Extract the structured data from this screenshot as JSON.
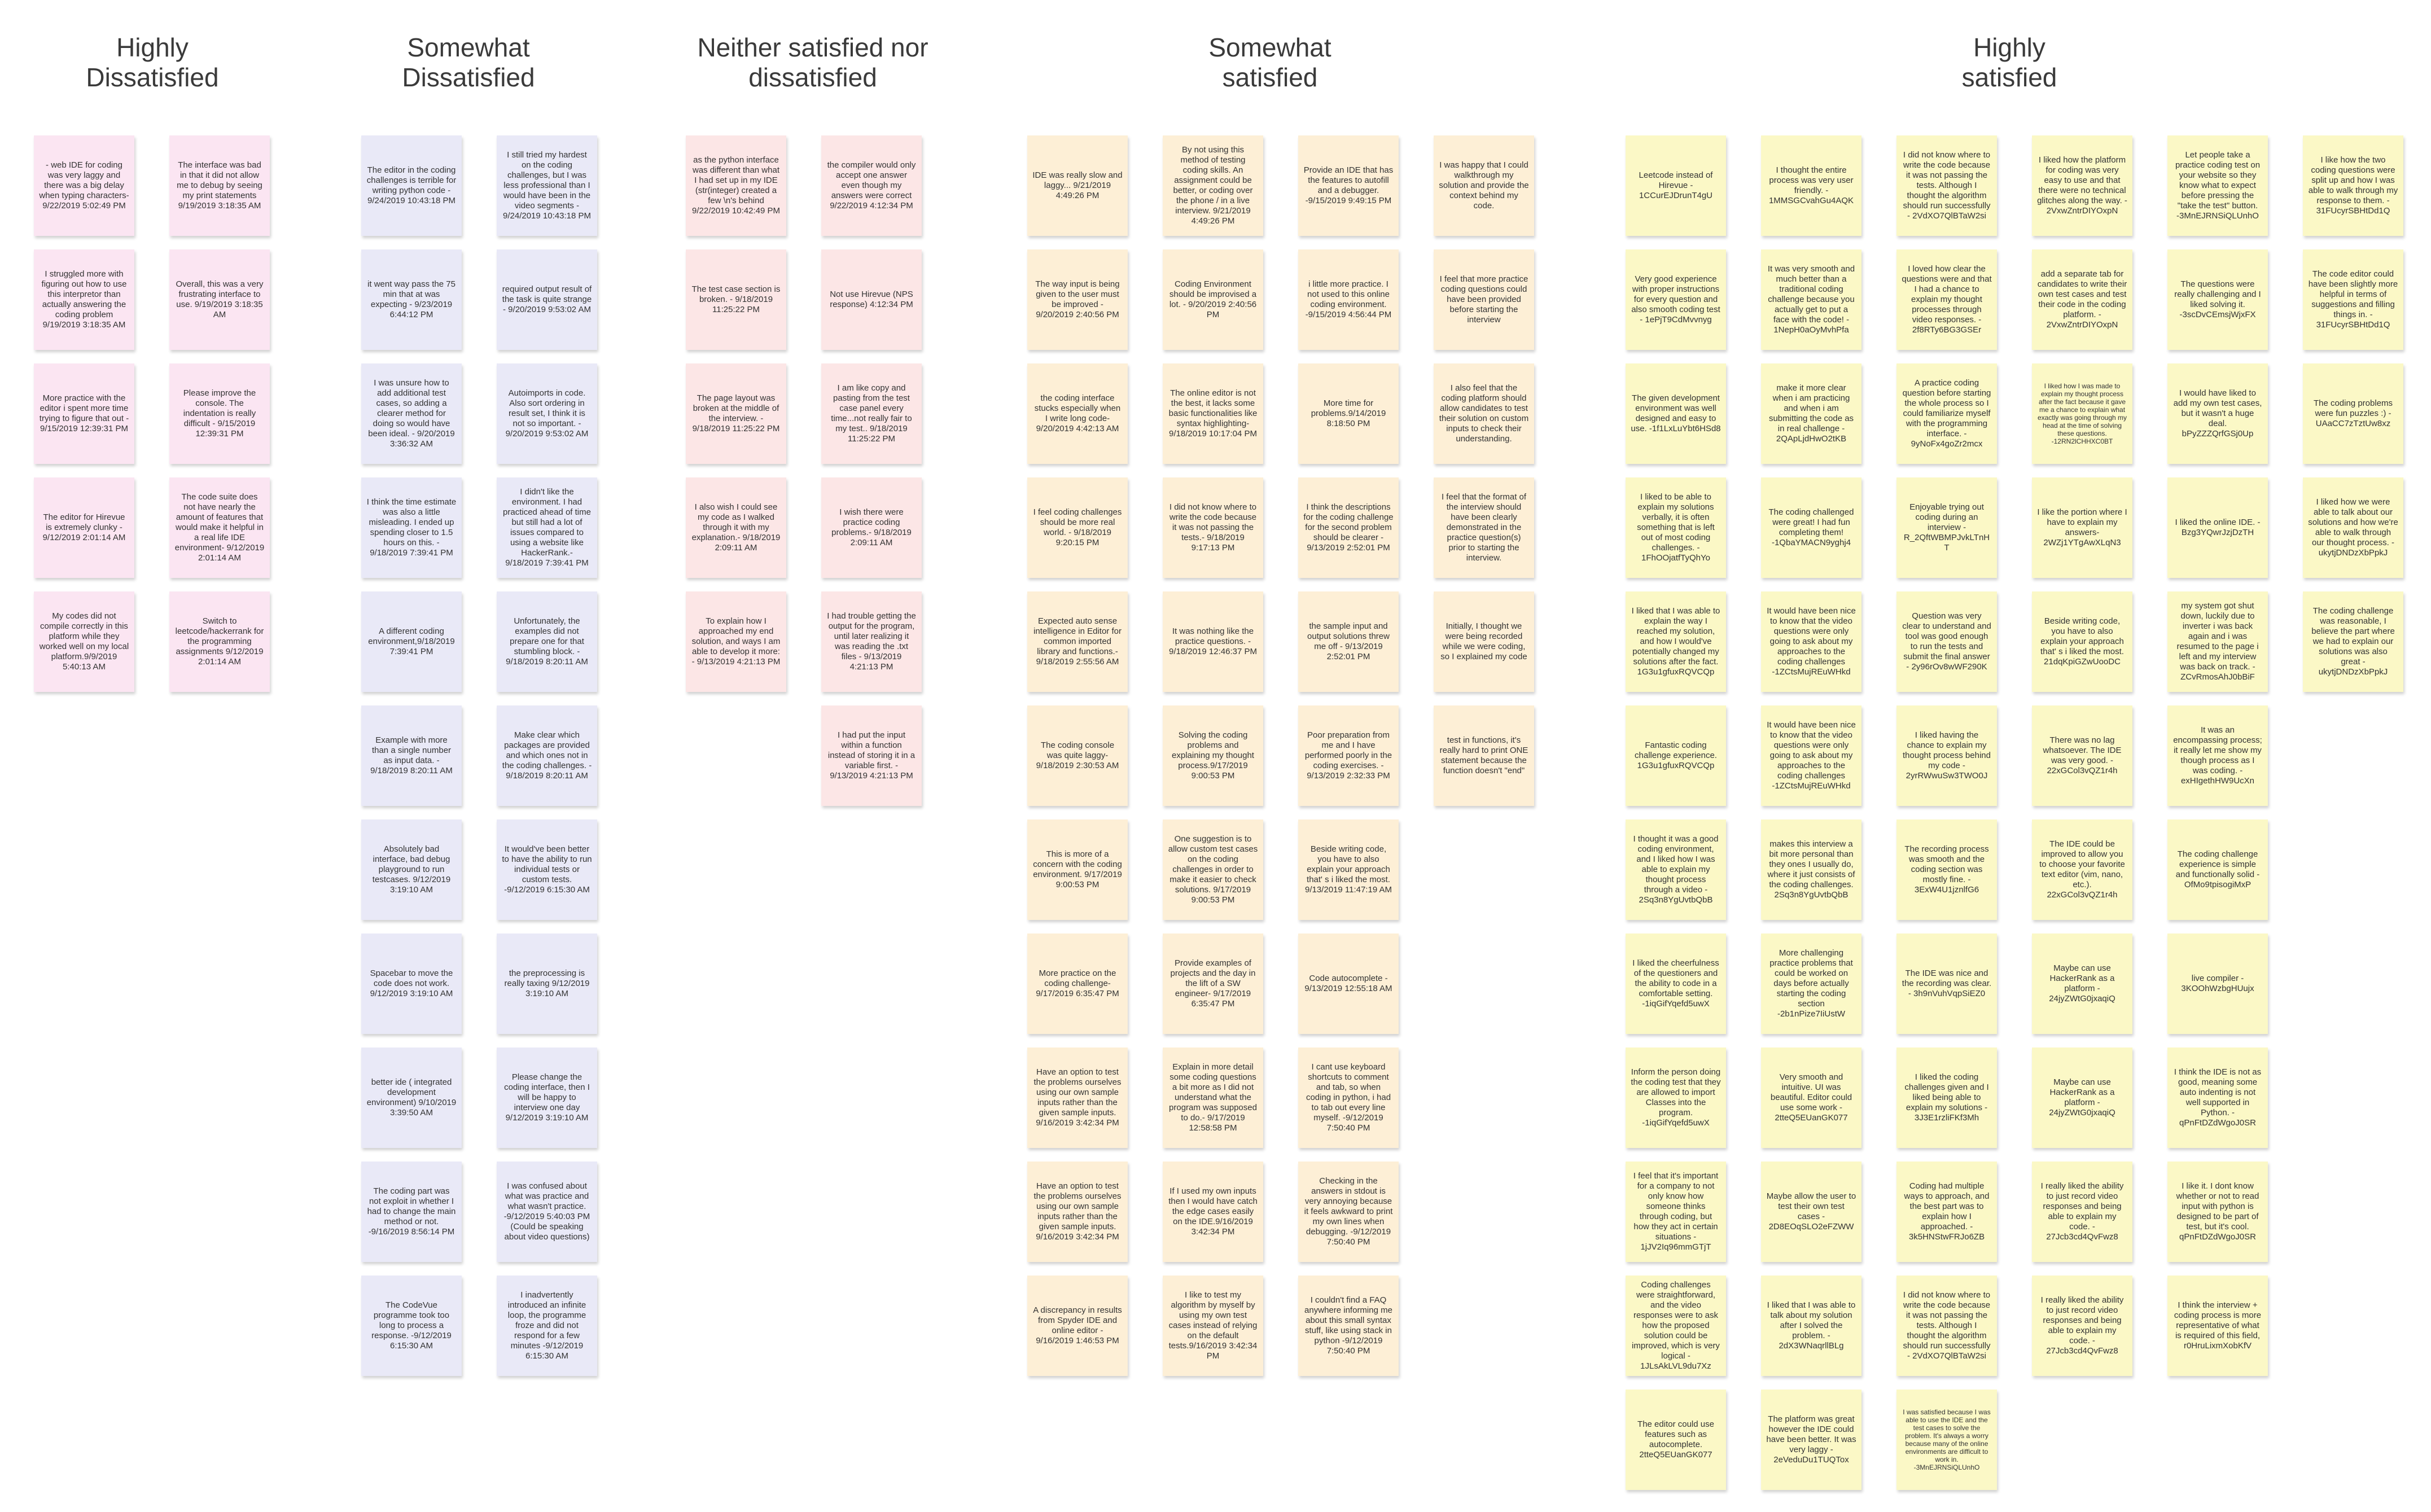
{
  "columns": [
    {
      "title": "Highly\nDissatisfied",
      "color": "#fbe5f2",
      "sub_columns": [
        [
          "- web IDE for coding was very laggy and there was a big delay when typing characters- 9/22/2019 5:02:49 PM",
          "I struggled more with figuring out how to use this interpretor than actually answering the coding problem 9/19/2019 3:18:35 AM",
          "More practice with the editor i spent more time trying to figure that out - 9/15/2019 12:39:31 PM",
          "The editor for Hirevue is extremely clunky - 9/12/2019 2:01:14 AM",
          "My codes did not compile correctly in this platform while they worked well on my local platform.9/9/2019 5:40:13 AM"
        ],
        [
          "The interface was bad in that it did not allow me to debug by seeing my print statements 9/19/2019 3:18:35 AM",
          "Overall, this was a very frustrating interface to use. 9/19/2019 3:18:35 AM",
          "Please improve the console. The indentation is really difficult - 9/15/2019 12:39:31 PM",
          "The code suite does not have nearly the amount of features that would make it helpful in a real life IDE environment- 9/12/2019 2:01:14 AM",
          "Switch to leetcode/hackerrank for the programming assignments 9/12/2019 2:01:14 AM"
        ]
      ]
    },
    {
      "title": "Somewhat\nDissatisfied",
      "color": "#e9e9f7",
      "sub_columns": [
        [
          "The editor in the coding challenges is terrible for writing python code - 9/24/2019 10:43:18 PM",
          "it went way pass the 75 min that at was expecting - 9/23/2019 6:44:12 PM",
          "I was unsure how to add additional test cases, so adding a clearer method for doing so would have been ideal. - 9/20/2019 3:36:32 AM",
          "I think the time estimate was also a little misleading. I ended up spending closer to 1.5 hours on this. - 9/18/2019 7:39:41 PM",
          "A different coding environment,9/18/2019 7:39:41 PM",
          "Example with more than a single number as input data. - 9/18/2019 8:20:11 AM",
          "Absolutely bad interface, bad debug playground to run testcases. 9/12/2019 3:19:10 AM",
          "Spacebar to move the code does not work. 9/12/2019 3:19:10 AM",
          "better ide ( integrated development environment) 9/10/2019 3:39:50 AM",
          "The coding part was not exploit in whether I had to change the main method or not. -9/16/2019 8:56:14 PM",
          "The CodeVue programme took too long to process a response. -9/12/2019 6:15:30 AM"
        ],
        [
          "I still tried my hardest on the coding challenges, but I was less professional than I would have been in the video segments - 9/24/2019 10:43:18 PM",
          "required output result of the task is quite strange - 9/20/2019 9:53:02 AM",
          "Autoimports in code.\n\nAlso sort ordering in result set, I think it is not so important. - 9/20/2019 9:53:02 AM",
          "I didn't like the environment. I had practiced ahead of time but still had a lot of issues compared to using a website like HackerRank.- 9/18/2019 7:39:41 PM",
          "Unfortunately, the examples did not prepare one for that stumbling block. - 9/18/2019 8:20:11 AM",
          "Make clear which packages are provided and which ones not in the coding challenges. - 9/18/2019 8:20:11 AM",
          "It would've been better to have the ability to run individual tests or custom tests. -9/12/2019 6:15:30 AM",
          "the preprocessing is really taxing 9/12/2019 3:19:10 AM",
          "Please change the coding interface, then I will be happy to interview one day 9/12/2019 3:19:10 AM",
          "I was confused about what was practice and what wasn't practice. -9/12/2019 5:40:03 PM (Could be speaking about video questions)",
          "I inadvertently introduced an infinite loop, the programme froze and did not respond for a few minutes -9/12/2019 6:15:30 AM"
        ]
      ]
    },
    {
      "title": "Neither satisfied nor\ndissatisfied",
      "color": "#fce6e6",
      "sub_columns": [
        [
          "as the python interface was different than what I had set up in my IDE (str(integer) created a few \\n's behind 9/22/2019 10:42:49 PM",
          "The test case section is broken. - 9/18/2019 11:25:22 PM",
          "The page layout was broken at the middle of the interview. - 9/18/2019 11:25:22 PM",
          "I also wish I could see my code as I walked through it with my explanation.- 9/18/2019 2:09:11 AM",
          "To explain how I approached my end solution, and ways I am able to develop it more: - 9/13/2019 4:21:13 PM"
        ],
        [
          "the compiler would only accept one answer even though my answers were correct 9/22/2019 4:12:34 PM",
          "Not use Hirevue (NPS response) 4:12:34 PM",
          "I am like copy and pasting from the test case panel every time...not really fair to my test.. 9/18/2019 11:25:22 PM",
          "I wish there were practice coding problems.- 9/18/2019 2:09:11 AM",
          "I had trouble getting the output for the program, until later realizing it was reading the .txt files - 9/13/2019 4:21:13 PM",
          "I had put the input within a function instead of storing it in a variable first. - 9/13/2019 4:21:13 PM"
        ]
      ]
    },
    {
      "title": "Somewhat\nsatisfied",
      "color": "#fdefd6",
      "sub_columns": [
        [
          "IDE was really slow and laggy... 9/21/2019 4:49:26 PM",
          "The way input is being given to the user must be improved - 9/20/2019 2:40:56 PM",
          "the coding interface stucks especially when I write long code- 9/20/2019 4:42:13 AM",
          "I feel coding challenges should be more real world. - 9/18/2019 9:20:15 PM",
          "Expected auto sense intelligence in Editor for common imported library and functions.- 9/18/2019 2:55:56 AM",
          "The coding console was quite laggy- 9/18/2019 2:30:53 AM",
          "This is more of a concern with the coding environment. 9/17/2019 9:00:53 PM",
          "More practice on the coding challenge- 9/17/2019 6:35:47 PM",
          "Have an option to test the problems ourselves using our own sample inputs rather than the given sample inputs. 9/16/2019 3:42:34 PM",
          "Have an option to test the problems ourselves using our own sample inputs rather than the given sample inputs. 9/16/2019 3:42:34 PM",
          "A discrepancy in results from Spyder IDE and online editor - 9/16/2019 1:46:53 PM"
        ],
        [
          "By not using this method of testing coding skills. An assignment could be better, or coding over the phone / in a live interview. 9/21/2019 4:49:26 PM",
          "Coding Environment should be improvised a lot. - 9/20/2019 2:40:56 PM",
          "The online editor is not the best, it lacks some basic functionalities like syntax highlighting- 9/18/2019 10:17:04 PM",
          "I did not know where to write the code because it was not passing the tests.- 9/18/2019 9:17:13 PM",
          "It was nothing like the practice questions. - 9/18/2019 12:46:37 PM",
          "Solving the coding problems and explaining my thought process.9/17/2019 9:00:53 PM",
          "One suggestion is to allow custom test cases on the coding challenges in order to make it easier to check solutions. 9/17/2019 9:00:53 PM",
          "Provide examples of projects and the day in the lift of a SW engineer- 9/17/2019 6:35:47 PM",
          "Explain in more detail some coding questions a bit more as I did not understand what the program was supposed to do.- 9/17/2019 12:58:58 PM",
          "If I used my own inputs then I would have catch the edge cases easily on the IDE.9/16/2019 3:42:34 PM",
          "I like to test my algorithm by myself by using my own test cases instead of relying on the default tests.9/16/2019 3:42:34 PM"
        ],
        [
          "Provide an IDE that has the features to autofill and a debugger. -9/15/2019 9:49:15 PM",
          "i little more practice. I not used to this online coding environment. -9/15/2019 4:56:44 PM",
          "More time for problems.9/14/2019 8:18:50 PM",
          "I think the descriptions for the coding challenge for the second problem should be clearer - 9/13/2019 2:52:01 PM",
          "the sample input and output solutions threw me off - 9/13/2019 2:52:01 PM",
          "Poor preparation from me and I have performed poorly in the coding exercises. - 9/13/2019 2:32:33 PM",
          "Beside writing code, you have to also explain your approach that' s i liked the most. 9/13/2019 11:47:19 AM",
          "Code autocomplete - 9/13/2019 12:55:18 AM",
          "I cant use keyboard shortcuts to comment and tab, so when coding in python, i had to tab out every line myself. -9/12/2019 7:50:40 PM",
          "Checking in the answers in stdout is very annoying because it feels awkward to print my own lines when debugging. -9/12/2019 7:50:40 PM",
          "I couldn't find a FAQ anywhere informing me about this small syntax stuff, like using stack in python -9/12/2019 7:50:40 PM"
        ],
        [
          "I was happy that I could walkthrough my solution and provide the context behind my code.",
          "I feel that more practice coding questions could have been provided before starting the interview",
          "I also feel that the coding platform should allow candidates to test their solution on custom inputs to check their understanding.",
          "I feel that the format of the interview should have been clearly demonstrated in the practice question(s) prior to starting the interview.",
          "Initially, I thought we were being recorded while we were coding, so I explained my code",
          "test in functions, it's really hard to print ONE statement because the function doesn't \"end\""
        ]
      ]
    },
    {
      "title": "Highly\nsatisfied",
      "color": "#fbf8c6",
      "sub_columns": [
        [
          "Leetcode instead of Hirevue - 1CCurEJDrunT4gU",
          "Very good experience with proper instructions for every question and also smooth coding test - 1ePjT9CdMvvnyg",
          "The given development environment was well designed and easy to use. -1f1LxLuYbt6HSd8",
          "I liked to be able to explain my solutions verbally, it is often something that is left out of most coding challenges. - 1FhOOjatfTyQhYo",
          "I liked that I was able to explain the way I reached my solution, and how I would've potentially changed my solutions after the fact. 1G3u1gfuxRQVCQp",
          "Fantastic coding challenge experience. 1G3u1gfuxRQVCQp",
          "I thought it was a good coding environment, and I liked how I was able to explain my thought process through a video - 2Sq3n8YgUvtbQbB",
          "I liked the cheerfulness of the questioners and the ability to code in a comfortable setting. -1iqGifYqefd5uwX",
          "Inform the person doing the coding test that they are allowed to import Classes into the program. -1iqGifYqefd5uwX",
          "I feel that it's important for a company to not only know how someone thinks through coding, but how they act in certain situations - 1jJV2Iq96mmGTjT",
          "Coding challenges were straightforward, and the video responses were to ask how the proposed solution could be improved, which is very logical - 1JLsAkLVL9du7Xz",
          "The editor could use features such as autocomplete. 2tteQ5EUanGK077"
        ],
        [
          "I thought the entire process was very user friendly. - 1MMSGCvahGu4AQK",
          "It was very smooth and much better than a traditional coding challenge because you actually get to put a face with the code! - 1NepH0aOyMvhPfa",
          "make it more clear when i am practicing and when i am submitting the code as in real challenge - 2QApLjdHwO2tKB",
          "The coding challenged were great! I had fun completing them! -1QbaYMACN9yghj4",
          "It would have been nice to know that the video questions were only going to ask about my approaches to the coding challenges -1ZCtsMujREuWHkd",
          "It would have been nice to know that the video questions were only going to ask about my approaches to the coding challenges -1ZCtsMujREuWHkd",
          "makes this interview a bit more personal than they ones I usually do, where it just consists of the coding challenges. 2Sq3n8YgUvtbQbB",
          "More challenging practice problems that could be worked on days before actually starting the coding section -2b1nPize7IiUstW",
          "Very smooth and intuitive. UI was beautiful. Editor could use some work - 2tteQ5EUanGK077",
          "Maybe allow the user to test their own test cases - 2D8EOqSLO2eFZWW",
          "I liked that I was able to talk about my solution after I solved the problem. - 2dX3WNaqrllBLg",
          "The platform was great however the IDE could have been better. It was very laggy - 2eVeduDu1TUQTox"
        ],
        [
          "I did not know where to write the code because it was not passing the tests. Although I thought the algorithm should run successfully - 2VdXO7QlBTaW2si",
          "I loved how clear the questions were and that I had a chance to explain my thought processes through video responses. - 2f8RTy6BG3GSEr",
          "A practice coding question before starting the whole process so I could familiarize myself with the programming interface. - 9yNoFx4goZr2mcx",
          "Enjoyable trying out coding during an interview - R_2QftWBMPJvkLTnHT",
          "Question was very clear to understand and tool was good enough to run the tests and submit the final answer - 2y96rOv8wWF290K",
          "I liked having the chance to explain my thought process behind my code - 2yrRWwuSw3TWO0J",
          "The recording process was smooth and the coding section was mostly fine. - 3ExW4U1jznlfG6",
          "The IDE was nice and the recording was clear. - 3h9nVuhVqpSiEZ0",
          "I liked the coding challenges given and I liked being able to explain my solutions - 3J3E1rzliFKf3Mh",
          "Coding had multiple ways to approach, and the best part was to explain how I approached. - 3k5HNStwFRJo6ZB",
          "I did not know where to write the code because it was not passing the tests. Although I thought the algorithm should run successfully - 2VdXO7QlBTaW2si",
          "I was satisfied because I was able to use the IDE and the test cases to solve the problem. It's always a worry because many of the online environments are difficult to work in. -3MnEJRNSiQLUnhO"
        ],
        [
          "I liked how the platform for coding was very easy to use and that there were no technical glitches along the way. - 2VxwZntrDIYOxpN",
          "add a separate tab for candidates to write their own test cases and test their code in the coding platform. - 2VxwZntrDIYOxpN",
          "I liked how I was made to explain my thought process after the fact because it gave me a chance to explain what exactly was going through my head at the time of solving these questions. -12RN2lCHHXC0BT",
          "I like the portion where I have to explain my answers- 2WZj1YTgAwXLqN3",
          "Beside writing code, you have to also explain your approach that' s i liked the most. 21dqKpiGZwUooDC",
          "There was no lag whatsoever. The IDE was very good. - 22xGCol3vQZ1r4h",
          "The IDE could be improved to allow you to choose your favorite text editor (vim, nano, etc.). 22xGCol3vQZ1r4h",
          "Maybe can use HackerRank as a platform - 24jyZWtG0jxaqiQ",
          "Maybe can use HackerRank as a platform - 24jyZWtG0jxaqiQ",
          "I really liked the ability to just record video responses and being able to explain my code. - 27Jcb3cd4QvFwz8",
          "I really liked the ability to just record video responses and being able to explain my code. - 27Jcb3cd4QvFwz8"
        ],
        [
          "Let people take a practice coding test on your website so they know what to expect before pressing the \"take the test\" button. -3MnEJRNSiQLUnhO",
          "The questions were really challenging and I liked solving it. -3scDvCEmsjWjxFX",
          "I would have liked to add my own test cases, but it wasn't a huge deal. bPyZZZQrfGSj0Up",
          "I liked the online IDE. - Bzg3YQwrJzjDzTH",
          "my system got shut down, luckily due to inverter i was back again and i was resumed to the page i left and my interview was back on track. - ZCvRmosAhJ0bBiF",
          "It was an encompassing process; it really let me show my though process as I was coding. - exHIgethHW9UcXn",
          "The coding challenge experience is simple and functionally solid - OfMo9tpisogiMxP",
          "live compiler - 3KOOhWzbgHUujx",
          "I think the IDE is not as good, meaning some auto indenting is not well supported in Python. - qPnFtDZdWgoJ0SR",
          "I like it. I dont know whether or not to read input with python is designed to be part of test, but it's cool. qPnFtDZdWgoJ0SR",
          "I think the interview + coding process is more representative of what is required of this field, r0HruLixmXobKfV"
        ],
        [
          "I like how the two coding questions were split up and how I was able to walk through my response to them. - 31FUcyrSBHtDd1Q",
          "The code editor could have been slightly more helpful in terms of suggestions and filling things in. - 31FUcyrSBHtDd1Q",
          "The coding problems were fun puzzles :) - UAaCC7zTztUw8xz",
          "I liked how we were able to talk about our solutions and how we're able to walk through our thought process. - ukytjDNDzXbPpkJ",
          "The coding challenge was reasonable, I believe the part where we had to explain our solutions was also great - ukytjDNDzXbPpkJ"
        ]
      ]
    }
  ]
}
